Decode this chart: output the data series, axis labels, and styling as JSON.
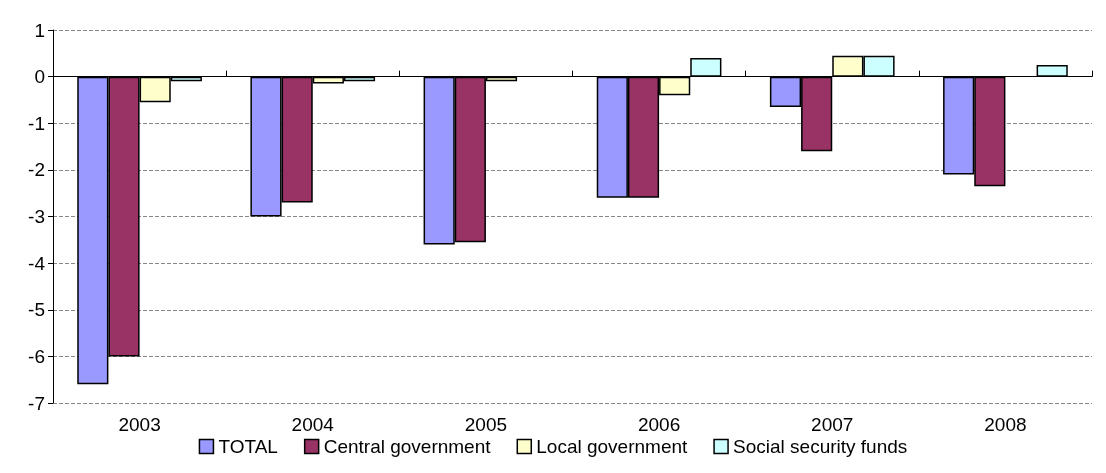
{
  "chart_data": {
    "type": "bar",
    "categories": [
      "2003",
      "2004",
      "2005",
      "2006",
      "2007",
      "2008"
    ],
    "series": [
      {
        "name": "TOTAL",
        "color": "#9999ff",
        "values": [
          -6.6,
          -3.0,
          -3.6,
          -2.6,
          -0.65,
          -2.1
        ]
      },
      {
        "name": "Central government",
        "color": "#993366",
        "values": [
          -6.0,
          -2.7,
          -3.55,
          -2.6,
          -1.6,
          -2.35
        ]
      },
      {
        "name": "Local government",
        "color": "#ffffcc",
        "values": [
          -0.55,
          -0.15,
          -0.1,
          -0.4,
          0.45,
          null
        ]
      },
      {
        "name": "Social security funds",
        "color": "#ccffff",
        "values": [
          -0.1,
          -0.1,
          null,
          0.4,
          0.45,
          0.25
        ]
      }
    ],
    "ylim": [
      -7,
      1
    ],
    "yticks": [
      -7,
      -6,
      -5,
      -4,
      -3,
      -2,
      -1,
      0,
      1
    ],
    "grid": "y",
    "legend": "bottom"
  }
}
